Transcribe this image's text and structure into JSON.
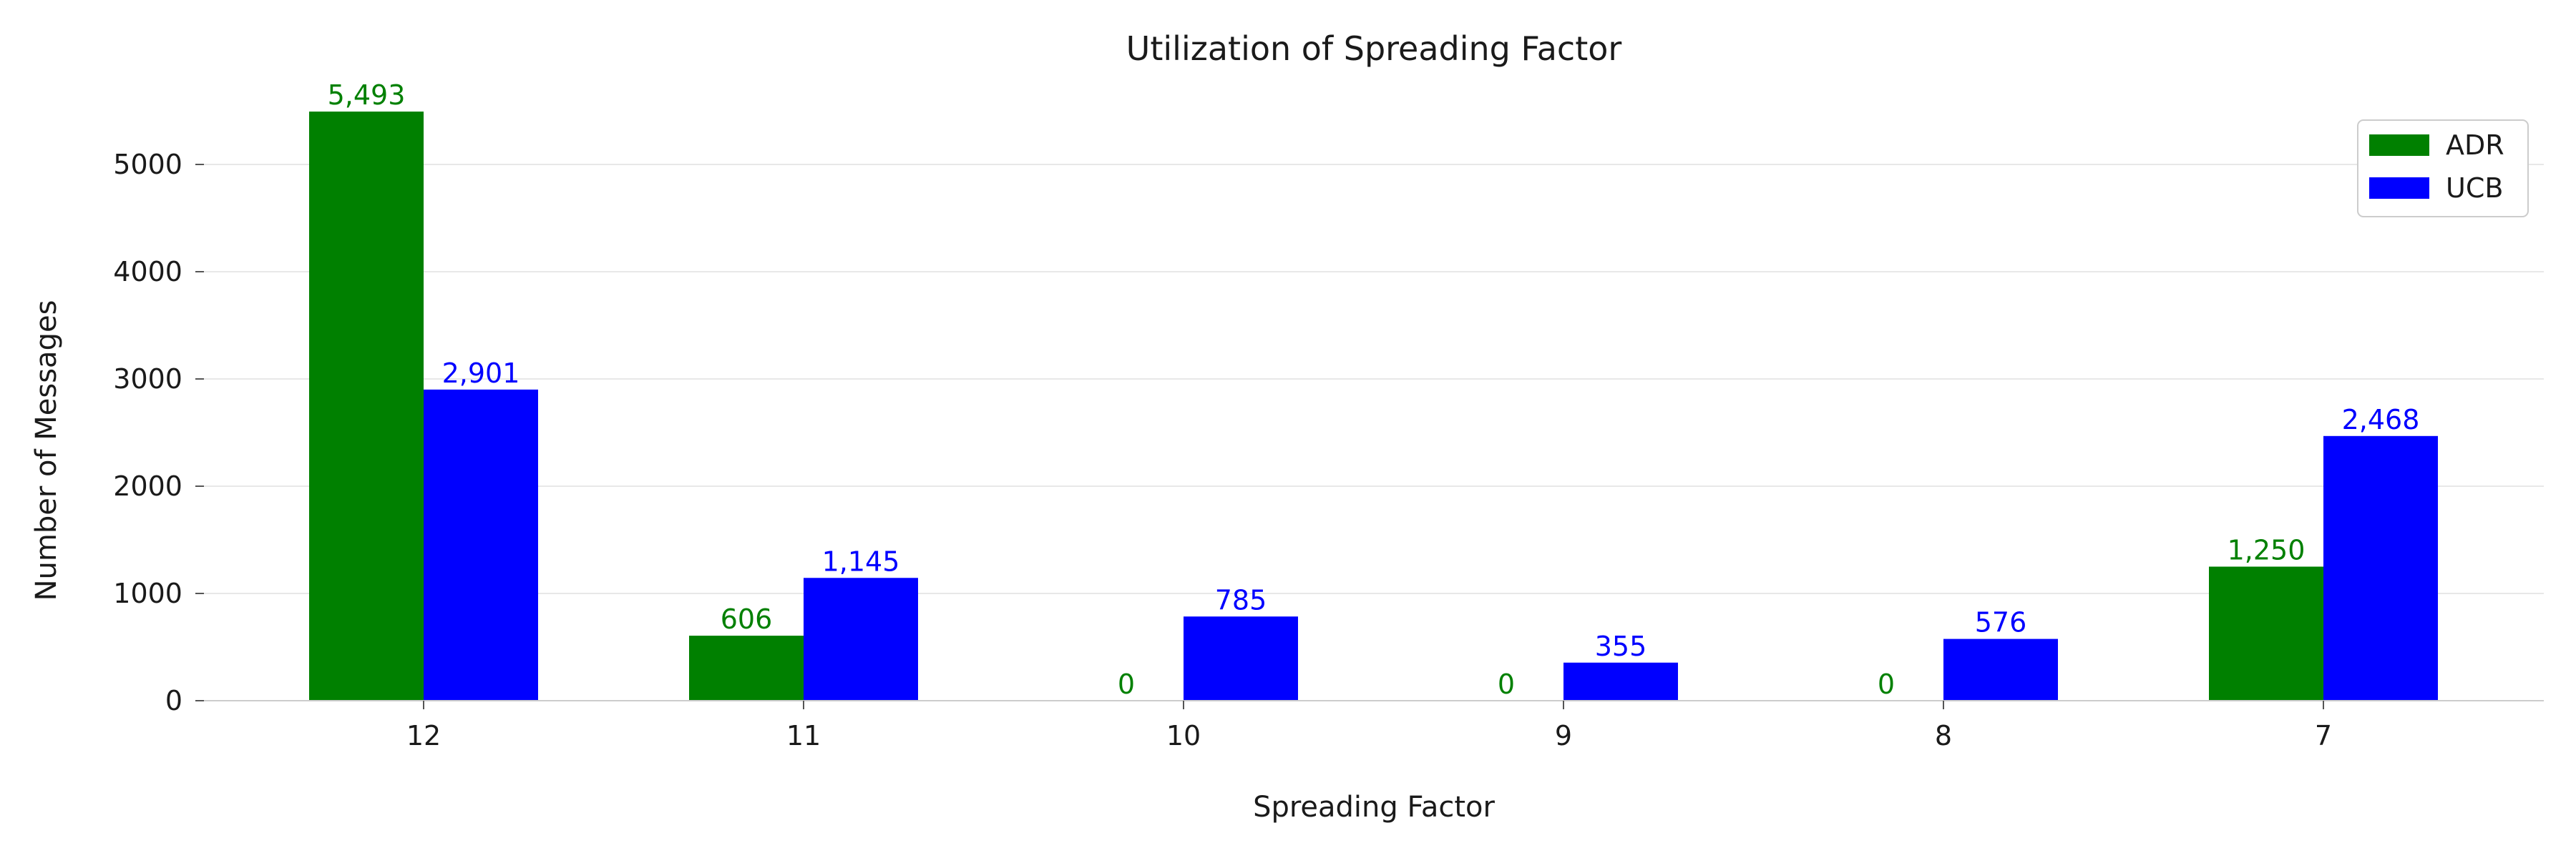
{
  "chart_data": {
    "type": "bar",
    "title": "Utilization of Spreading Factor",
    "xlabel": "Spreading Factor",
    "ylabel": "Number of Messages",
    "categories": [
      "12",
      "11",
      "10",
      "9",
      "8",
      "7"
    ],
    "series": [
      {
        "name": "ADR",
        "color": "#008000",
        "values": [
          5493,
          606,
          0,
          0,
          0,
          1250
        ],
        "labels": [
          "5,493",
          "606",
          "0",
          "0",
          "0",
          "1,250"
        ]
      },
      {
        "name": "UCB",
        "color": "#0000ff",
        "values": [
          2901,
          1145,
          785,
          355,
          576,
          2468
        ],
        "labels": [
          "2,901",
          "1,145",
          "785",
          "355",
          "576",
          "2,468"
        ]
      }
    ],
    "ylim": [
      0,
      5800
    ],
    "yticks": [
      0,
      1000,
      2000,
      3000,
      4000,
      5000
    ],
    "grid": "horizontal",
    "legend_position": "top-right"
  }
}
